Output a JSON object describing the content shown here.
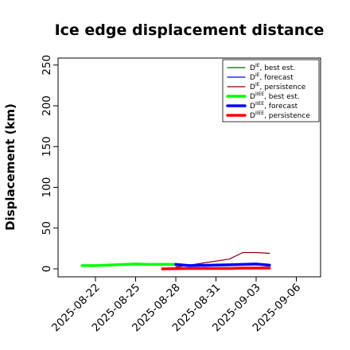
{
  "chart_data": {
    "type": "line",
    "title": "Ice edge displacement distance",
    "ylabel": "Displacement (km)",
    "xlabel": "",
    "ylim": [
      0,
      260
    ],
    "yticks": [
      0,
      50,
      100,
      150,
      200,
      250
    ],
    "xlim": [
      "2025-08-19",
      "2025-09-08"
    ],
    "xticks": [
      {
        "date": "2025-08-22",
        "label": "2025-08-22",
        "color": "#000000"
      },
      {
        "date": "2025-08-25",
        "label": "2025-08-25",
        "color": "#000000"
      },
      {
        "date": "2025-08-28",
        "label": "2025-08-28",
        "color": "#228b22"
      },
      {
        "date": "2025-08-31",
        "label": "2025-08-31",
        "color": "#000000"
      },
      {
        "date": "2025-09-03",
        "label": "2025-09-03",
        "color": "#000000"
      },
      {
        "date": "2025-09-06",
        "label": "2025-09-06",
        "color": "#000000"
      }
    ],
    "grid": false,
    "legend_position": "top-right",
    "series": [
      {
        "name": "D^IE, best est.",
        "label_main": "D",
        "label_sup": "IE",
        "label_rest": ", best est.",
        "color": "#006400",
        "width": 1.2,
        "x": [
          "2025-08-28",
          "2025-08-29"
        ],
        "y": [
          5,
          5
        ]
      },
      {
        "name": "D^IE, forecast",
        "label_main": "D",
        "label_sup": "IE",
        "label_rest": ", forecast",
        "color": "#0000ff",
        "width": 1.2,
        "x": [
          "2025-08-28",
          "2025-09-01",
          "2025-09-02",
          "2025-09-03",
          "2025-09-04"
        ],
        "y": [
          4,
          4,
          5,
          5,
          4
        ]
      },
      {
        "name": "D^IE, persistence",
        "label_main": "D",
        "label_sup": "IE",
        "label_rest": ", persistence",
        "color": "#8b0000",
        "width": 1.2,
        "x": [
          "2025-08-28",
          "2025-09-01",
          "2025-09-02",
          "2025-09-03",
          "2025-09-04"
        ],
        "y": [
          2,
          12,
          20,
          20,
          19
        ]
      },
      {
        "name": "D^IIEE, best est.",
        "label_main": "D",
        "label_sup": "IIEE",
        "label_rest": ", best est.",
        "color": "#00ff00",
        "width": 3.5,
        "x": [
          "2025-08-21",
          "2025-08-22",
          "2025-08-25",
          "2025-08-26",
          "2025-08-27",
          "2025-08-28"
        ],
        "y": [
          4,
          4,
          6,
          5.5,
          5.5,
          5.5
        ]
      },
      {
        "name": "D^IIEE, forecast",
        "label_main": "D",
        "label_sup": "IIEE",
        "label_rest": ", forecast",
        "color": "#0000ff",
        "width": 3.5,
        "x": [
          "2025-08-28",
          "2025-08-29",
          "2025-09-01",
          "2025-09-02",
          "2025-09-03",
          "2025-09-04"
        ],
        "y": [
          5.5,
          4,
          5,
          5.5,
          6,
          4.5
        ]
      },
      {
        "name": "D^IIEE, persistence",
        "label_main": "D",
        "label_sup": "IIEE",
        "label_rest": ", persistence",
        "color": "#ff0000",
        "width": 3.5,
        "x": [
          "2025-08-27",
          "2025-08-29",
          "2025-09-01",
          "2025-09-02",
          "2025-09-03",
          "2025-09-04"
        ],
        "y": [
          0,
          0.5,
          0.5,
          1,
          1,
          1
        ]
      }
    ]
  }
}
